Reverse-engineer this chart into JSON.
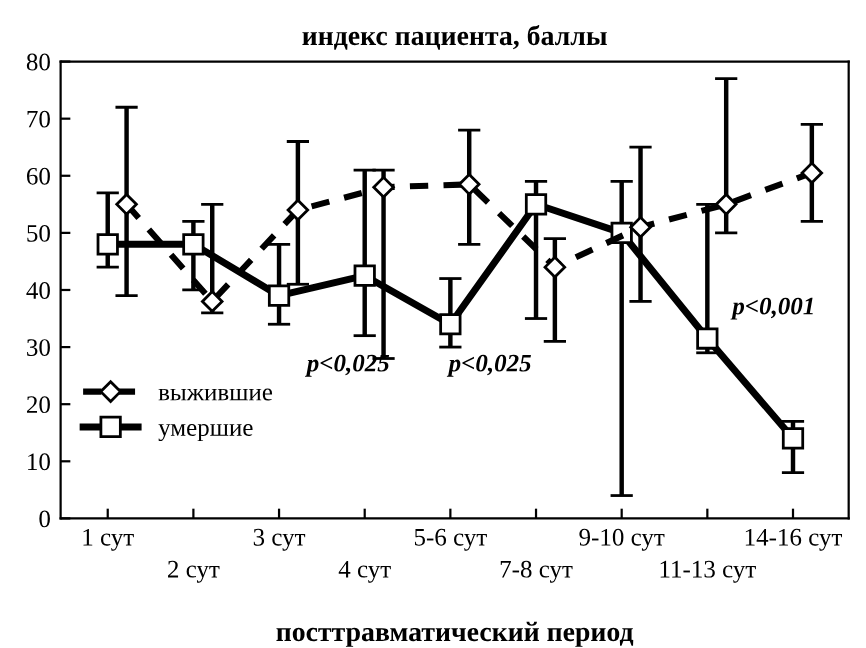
{
  "chart_data": {
    "type": "line",
    "title": "индекс пациента, баллы",
    "xlabel": "посттравматический период",
    "categories": [
      "1 сут",
      "2 сут",
      "3 сут",
      "4 сут",
      "5-6 сут",
      "7-8 сут",
      "9-10 сут",
      "11-13 сут",
      "14-16 сут"
    ],
    "series": [
      {
        "name": "умершие",
        "color": "#000000",
        "marker": "square",
        "line_style": "solid",
        "values": [
          48,
          48,
          39,
          42.5,
          34,
          55,
          50,
          31.5,
          14
        ],
        "errors": [
          [
            44,
            57
          ],
          [
            40,
            52
          ],
          [
            34,
            48
          ],
          [
            32,
            61
          ],
          [
            30,
            42
          ],
          [
            35,
            59
          ],
          [
            4,
            59
          ],
          [
            29,
            55
          ],
          [
            8,
            17
          ]
        ]
      },
      {
        "name": "выжившие",
        "color": "#000000",
        "marker": "diamond",
        "line_style": "dashed",
        "values": [
          55,
          38,
          54,
          58,
          58.5,
          44,
          51,
          55,
          60.5
        ],
        "errors": [
          [
            39,
            72
          ],
          [
            36,
            55
          ],
          [
            41,
            66
          ],
          [
            28,
            61
          ],
          [
            48,
            68
          ],
          [
            31,
            49
          ],
          [
            38,
            65
          ],
          [
            50,
            77
          ],
          [
            52,
            69
          ]
        ]
      }
    ],
    "ylim": [
      0,
      80
    ],
    "yticks": [
      0,
      10,
      20,
      30,
      40,
      50,
      60,
      70,
      80
    ],
    "grid": false,
    "legend": "bottom left",
    "annotations": [
      "p<0,025",
      "p<0,025",
      "p<0,001"
    ]
  }
}
